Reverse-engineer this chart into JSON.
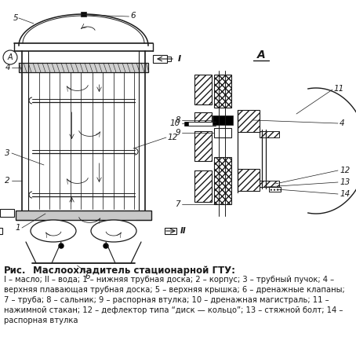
{
  "title_prefix": "Рис.",
  "title_main": "Маслоохладитель стационарной ГТУ:",
  "caption_line1": "I – масло; II – вода; 1 – нижняя трубная доска; 2 – корпус; 3 – трубный пучок; 4 –",
  "caption_line2": "верхняя плавающая трубная доска; 5 – верхняя крышка; 6 – дренажные клапаны;",
  "caption_line3": "7 – труба; 8 – сальник; 9 – распорная втулка; 10 – дренажная магистраль; 11 –",
  "caption_line4": "нажимной стакан; 12 – дефлектор типа “диск — кольцо”; 13 – стяжной болт; 14 –",
  "caption_line5": "распорная втулка",
  "bg_color": "#ffffff",
  "line_color": "#1a1a1a",
  "fig_width": 4.54,
  "fig_height": 4.43
}
